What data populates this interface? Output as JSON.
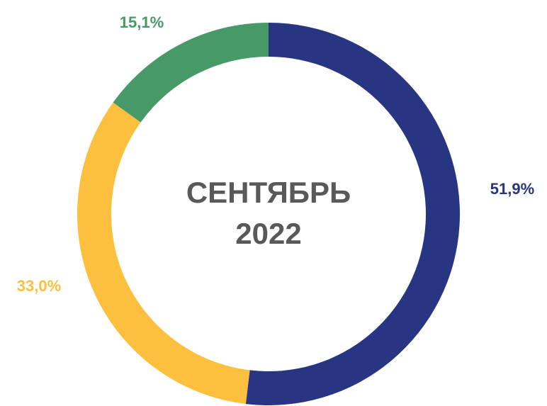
{
  "chart_data": {
    "type": "donut",
    "center_label": [
      "СЕНТЯБРЬ",
      "2022"
    ],
    "values": [
      51.9,
      33.0,
      15.1
    ],
    "value_labels": [
      "51,9%",
      "33,0%",
      "15,1%"
    ],
    "colors": [
      "#283583",
      "#fdc03e",
      "#479a67"
    ]
  }
}
